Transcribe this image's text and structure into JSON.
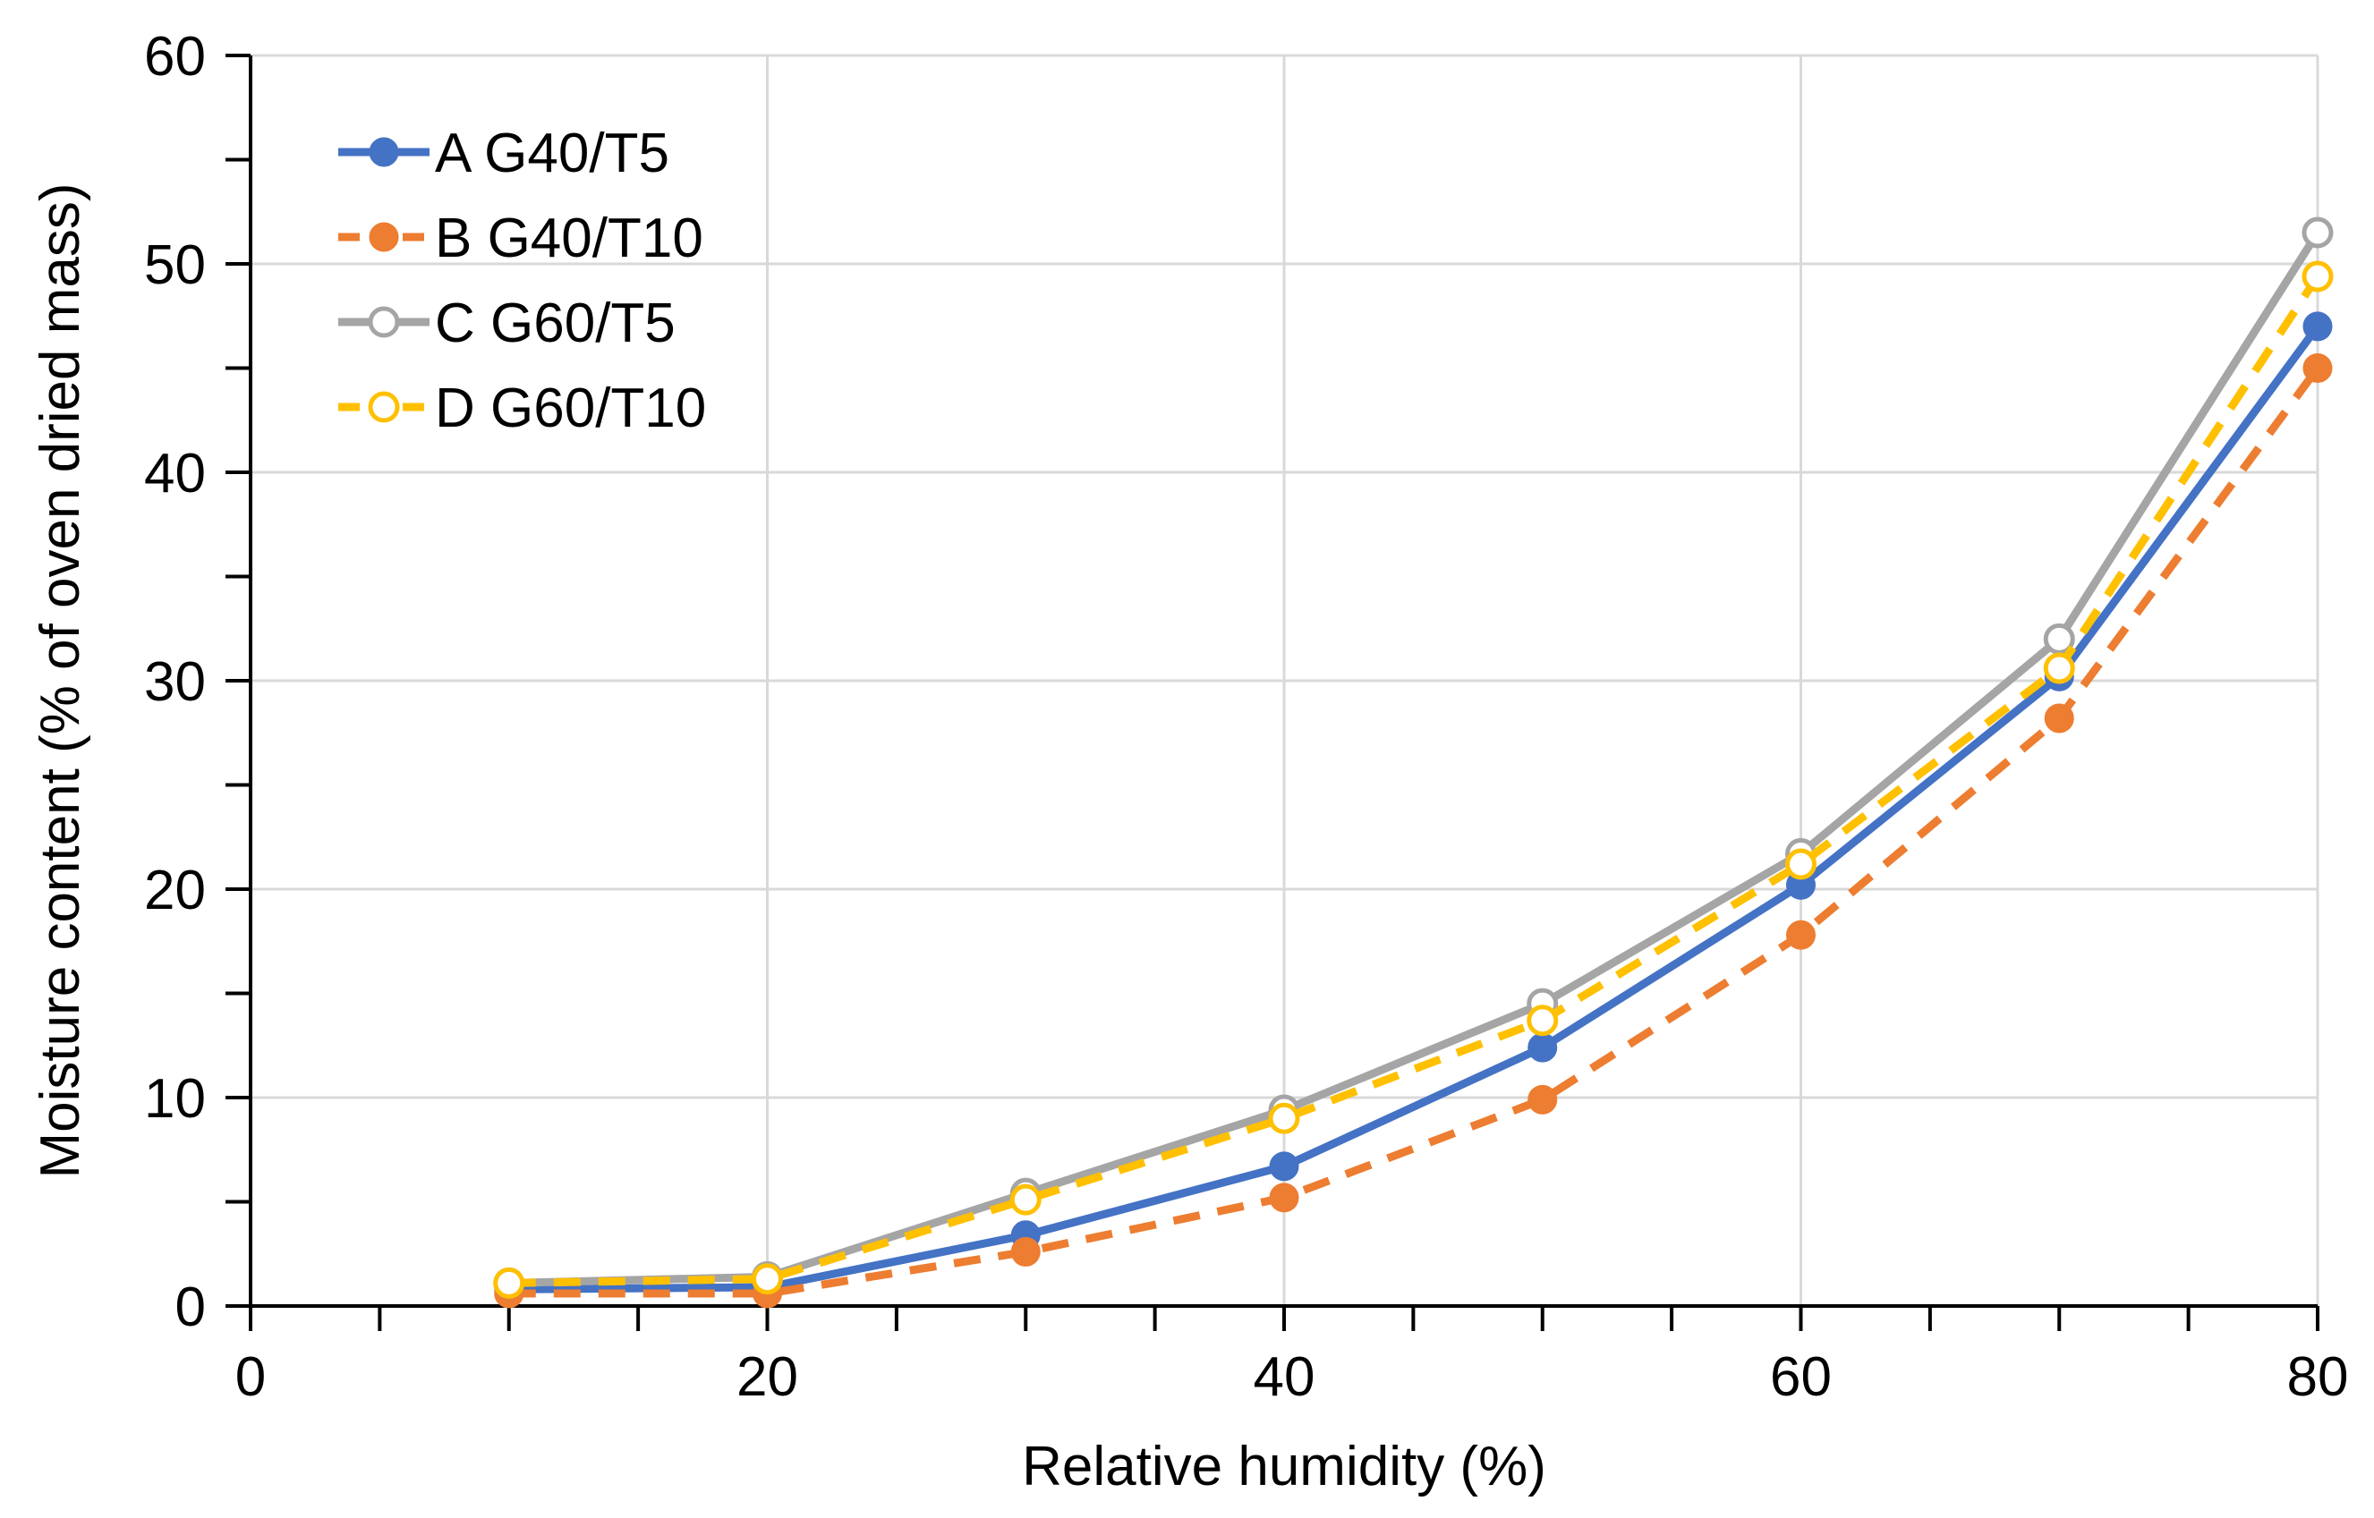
{
  "chart_data": {
    "type": "line",
    "title": "",
    "xlabel": "Relative humidity (%)",
    "ylabel": "Moisture content (% of oven dried mass)",
    "xlim": [
      0,
      80
    ],
    "ylim": [
      0,
      60
    ],
    "x_ticks": [
      0,
      20,
      40,
      60,
      80
    ],
    "y_ticks": [
      0,
      10,
      20,
      30,
      40,
      50,
      60
    ],
    "x_minor_step": 5,
    "y_minor_step": 5,
    "grid": true,
    "legend_position": "top-left",
    "x": [
      10,
      20,
      30,
      40,
      50,
      60,
      70,
      80
    ],
    "series": [
      {
        "name": "A G40/T5",
        "color": "#4472C4",
        "dash": "solid",
        "marker": "filled-circle",
        "values": [
          0.8,
          0.9,
          3.4,
          6.7,
          12.4,
          20.2,
          30.2,
          47.0
        ]
      },
      {
        "name": "B G40/T10",
        "color": "#ED7D31",
        "dash": "dashed",
        "marker": "filled-circle",
        "values": [
          0.6,
          0.6,
          2.6,
          5.2,
          9.9,
          17.8,
          28.2,
          45.0
        ]
      },
      {
        "name": "C G60/T5",
        "color": "#A5A5A5",
        "dash": "solid",
        "marker": "open-circle",
        "values": [
          1.1,
          1.4,
          5.4,
          9.4,
          14.5,
          21.7,
          32.0,
          51.5
        ]
      },
      {
        "name": "D G60/T10",
        "color": "#FFC000",
        "dash": "dashed",
        "marker": "open-circle",
        "values": [
          1.1,
          1.3,
          5.1,
          9.0,
          13.7,
          21.2,
          30.6,
          49.4
        ]
      }
    ]
  }
}
